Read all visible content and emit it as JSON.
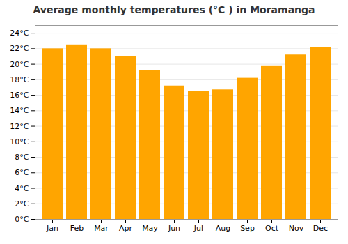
{
  "chart_data": {
    "type": "bar",
    "title": "Average monthly temperatures (°C ) in Moramanga",
    "categories": [
      "Jan",
      "Feb",
      "Mar",
      "Apr",
      "May",
      "Jun",
      "Jul",
      "Aug",
      "Sep",
      "Oct",
      "Nov",
      "Dec"
    ],
    "values": [
      22.0,
      22.5,
      22.0,
      21.0,
      19.2,
      17.2,
      16.5,
      16.7,
      18.2,
      19.8,
      21.2,
      22.2
    ],
    "color": "#FFA500",
    "ylim": [
      0,
      25
    ],
    "yticks": [
      {
        "value": 0,
        "label": "0°C"
      },
      {
        "value": 2,
        "label": "2°C"
      },
      {
        "value": 4,
        "label": "4°C"
      },
      {
        "value": 6,
        "label": "6°C"
      },
      {
        "value": 8,
        "label": "8°C"
      },
      {
        "value": 10,
        "label": "10°C"
      },
      {
        "value": 12,
        "label": "12°C"
      },
      {
        "value": 14,
        "label": "14°C"
      },
      {
        "value": 16,
        "label": "16°C"
      },
      {
        "value": 18,
        "label": "18°C"
      },
      {
        "value": 20,
        "label": "20°C"
      },
      {
        "value": 22,
        "label": "22°C"
      },
      {
        "value": 24,
        "label": "24°C"
      }
    ],
    "grid": true
  }
}
